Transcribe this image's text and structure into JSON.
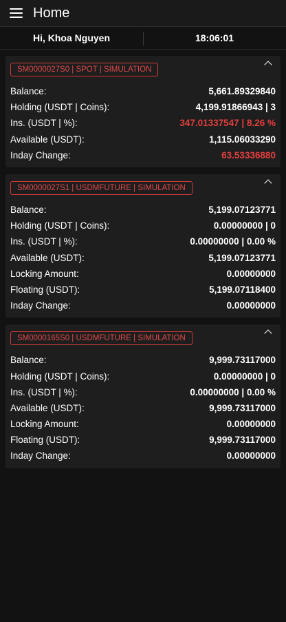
{
  "appbar": {
    "title": "Home",
    "menu_icon": "menu-icon"
  },
  "userbar": {
    "greeting": "Hi, Khoa Nguyen",
    "time": "18:06:01"
  },
  "accent_color": "#e04848",
  "accounts": [
    {
      "tag": "SM0000027S0 | SPOT | SIMULATION",
      "rows": [
        {
          "label": "Balance:",
          "value": "5,661.89329840",
          "highlight": false
        },
        {
          "label": "Holding (USDT | Coins):",
          "value": "4,199.91866943 | 3",
          "highlight": false
        },
        {
          "label": "Ins. (USDT | %):",
          "value": "347.01337547 | 8.26 %",
          "highlight": true
        },
        {
          "label": "Available (USDT):",
          "value": "1,115.06033290",
          "highlight": false
        },
        {
          "label": "Inday Change:",
          "value": "63.53336880",
          "highlight": true
        }
      ]
    },
    {
      "tag": "SM0000027S1 | USDMFUTURE | SIMULATION",
      "rows": [
        {
          "label": "Balance:",
          "value": "5,199.07123771",
          "highlight": false
        },
        {
          "label": "Holding (USDT | Coins):",
          "value": "0.00000000 | 0",
          "highlight": false
        },
        {
          "label": "Ins. (USDT | %):",
          "value": "0.00000000 | 0.00 %",
          "highlight": false
        },
        {
          "label": "Available (USDT):",
          "value": "5,199.07123771",
          "highlight": false
        },
        {
          "label": "Locking Amount:",
          "value": "0.00000000",
          "highlight": false
        },
        {
          "label": "Floating (USDT):",
          "value": "5,199.07118400",
          "highlight": false
        },
        {
          "label": "Inday Change:",
          "value": "0.00000000",
          "highlight": false
        }
      ]
    },
    {
      "tag": "SM0000165S0 | USDMFUTURE | SIMULATION",
      "rows": [
        {
          "label": "Balance:",
          "value": "9,999.73117000",
          "highlight": false
        },
        {
          "label": "Holding (USDT | Coins):",
          "value": "0.00000000 | 0",
          "highlight": false
        },
        {
          "label": "Ins. (USDT | %):",
          "value": "0.00000000 | 0.00 %",
          "highlight": false
        },
        {
          "label": "Available (USDT):",
          "value": "9,999.73117000",
          "highlight": false
        },
        {
          "label": "Locking Amount:",
          "value": "0.00000000",
          "highlight": false
        },
        {
          "label": "Floating (USDT):",
          "value": "9,999.73117000",
          "highlight": false
        },
        {
          "label": "Inday Change:",
          "value": "0.00000000",
          "highlight": false
        }
      ]
    }
  ]
}
